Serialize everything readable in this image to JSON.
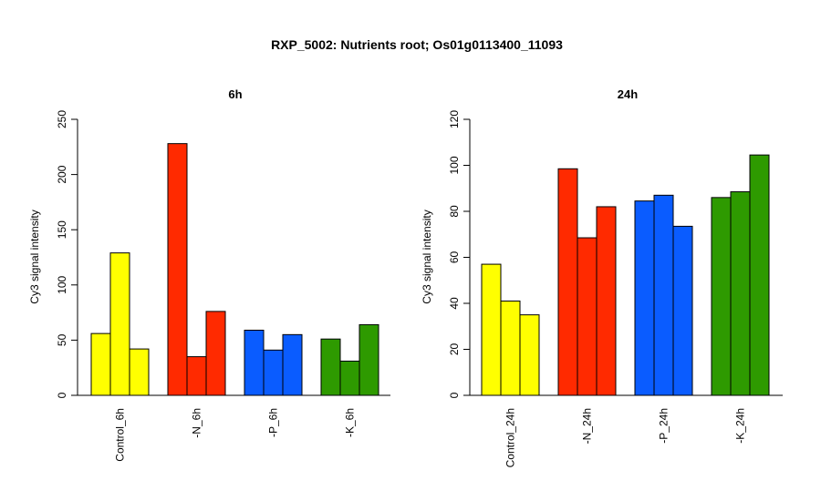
{
  "page_title": "RXP_5002: Nutrients root; Os01g0113400_11093",
  "chart_data": [
    {
      "type": "bar",
      "title": "6h",
      "ylabel": "Cy3 signal intensity",
      "ylim": [
        0,
        250
      ],
      "yticks": [
        0,
        50,
        100,
        150,
        200,
        250
      ],
      "grid": false,
      "categories": [
        "Control_6h",
        "-N_6h",
        "-P_6h",
        "-K_6h"
      ],
      "group_colors": [
        "#ffff00",
        "#ff2a00",
        "#0a5cff",
        "#2e9a00"
      ],
      "values": [
        [
          56,
          129,
          42
        ],
        [
          228,
          35,
          76
        ],
        [
          59,
          41,
          55
        ],
        [
          51,
          31,
          64
        ]
      ]
    },
    {
      "type": "bar",
      "title": "24h",
      "ylabel": "Cy3 signal intensity",
      "ylim": [
        0,
        120
      ],
      "yticks": [
        0,
        20,
        40,
        60,
        80,
        100,
        120
      ],
      "grid": false,
      "categories": [
        "Control_24h",
        "-N_24h",
        "-P_24h",
        "-K_24h"
      ],
      "group_colors": [
        "#ffff00",
        "#ff2a00",
        "#0a5cff",
        "#2e9a00"
      ],
      "values": [
        [
          57,
          41,
          35
        ],
        [
          98.5,
          68.5,
          82
        ],
        [
          84.5,
          87,
          73.5
        ],
        [
          86,
          88.5,
          104.5
        ]
      ]
    }
  ]
}
